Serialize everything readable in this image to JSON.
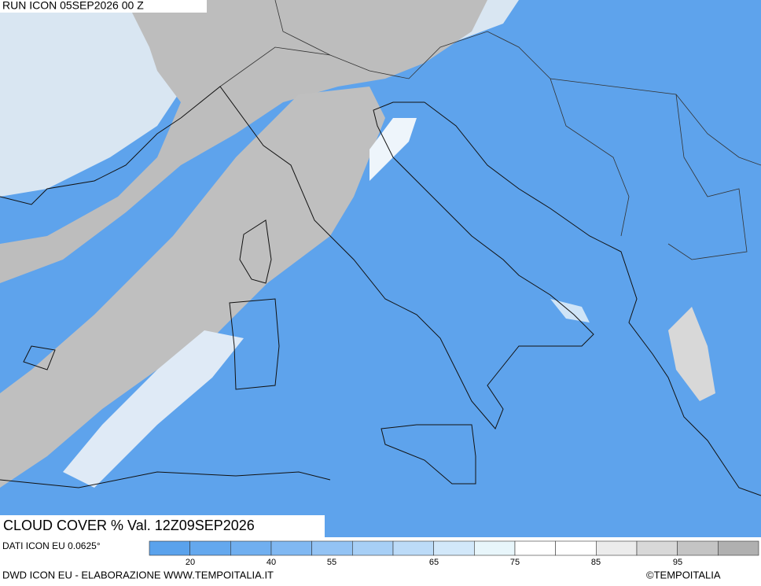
{
  "header": {
    "run": "RUN ICON 05SEP2026 00 Z"
  },
  "map": {
    "title": "CLOUD COVER % Val. 12Z09SEP2026"
  },
  "legend": {
    "source": "DATI ICON EU 0.0625°",
    "colors": [
      "#5aa2ec",
      "#64a8ee",
      "#70aff0",
      "#80b8f2",
      "#93c3f4",
      "#a7cff6",
      "#bcdbf8",
      "#d2e8fa",
      "#e8f6fb",
      "#ffffff",
      "#ffffff",
      "#ececec",
      "#d8d8d8",
      "#c4c4c4",
      "#b0b0b0"
    ],
    "ticks": [
      20,
      40,
      55,
      65,
      75,
      85,
      95
    ]
  },
  "footer": {
    "credit": "DWD ICON EU - ELABORAZIONE WWW.TEMPOITALIA.IT",
    "brand": "©TEMPOITALIA"
  }
}
